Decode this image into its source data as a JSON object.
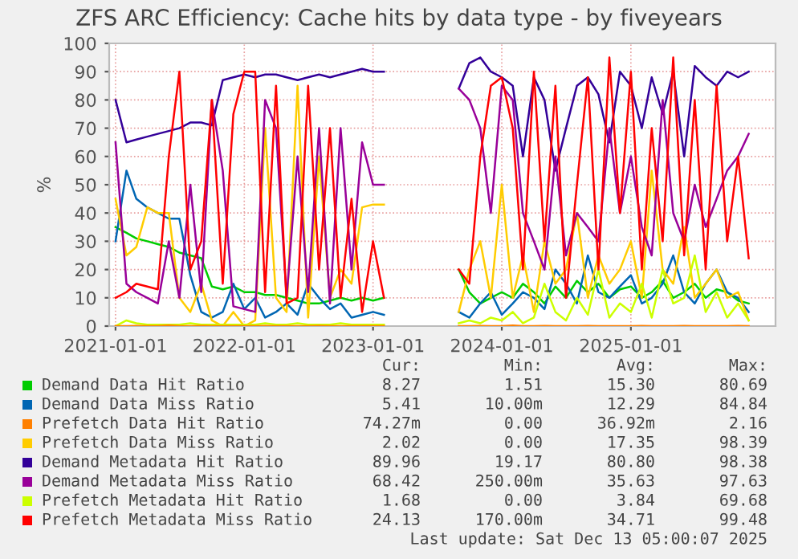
{
  "chart_data": {
    "type": "line",
    "title": "ZFS ARC Efficiency: Cache hits by data type - by fiveyears",
    "ylabel": "%",
    "x": [
      "2021-01",
      "2021-02",
      "2021-03",
      "2021-04",
      "2021-05",
      "2021-06",
      "2021-07",
      "2021-08",
      "2021-09",
      "2021-10",
      "2021-11",
      "2021-12",
      "2022-01",
      "2022-02",
      "2022-03",
      "2022-04",
      "2022-05",
      "2022-06",
      "2022-07",
      "2022-08",
      "2022-09",
      "2022-10",
      "2022-11",
      "2022-12",
      "2023-01",
      "2023-02",
      "2023-03",
      "2023-04",
      "2023-05",
      "2023-06",
      "2023-07",
      "2023-08",
      "2023-09",
      "2023-10",
      "2023-11",
      "2023-12",
      "2024-01",
      "2024-02",
      "2024-03",
      "2024-04",
      "2024-05",
      "2024-06",
      "2024-07",
      "2024-08",
      "2024-09",
      "2024-10",
      "2024-11",
      "2024-12",
      "2025-01",
      "2025-02",
      "2025-03",
      "2025-04",
      "2025-05",
      "2025-06",
      "2025-07",
      "2025-08",
      "2025-09",
      "2025-10",
      "2025-11",
      "2025-12"
    ],
    "series": [
      {
        "name": "Demand Data Hit Ratio",
        "color": "#00cc00",
        "values": [
          35,
          33,
          31,
          30,
          29,
          28,
          26,
          25,
          24,
          14,
          13,
          14,
          12,
          12,
          11,
          11,
          10,
          9,
          8,
          8,
          9,
          10,
          9,
          10,
          9,
          10,
          null,
          null,
          null,
          null,
          null,
          null,
          20,
          12,
          8,
          10,
          12,
          10,
          15,
          12,
          8,
          14,
          10,
          16,
          12,
          15,
          10,
          13,
          14,
          10,
          12,
          16,
          10,
          12,
          15,
          10,
          13,
          12,
          9,
          8
        ]
      },
      {
        "name": "Demand Data Miss Ratio",
        "color": "#0066b3",
        "values": [
          30,
          55,
          45,
          42,
          40,
          38,
          38,
          18,
          5,
          3,
          5,
          15,
          6,
          10,
          3,
          5,
          8,
          4,
          15,
          10,
          6,
          8,
          3,
          4,
          5,
          4,
          null,
          null,
          null,
          null,
          null,
          null,
          5,
          3,
          8,
          12,
          4,
          8,
          12,
          10,
          6,
          20,
          15,
          8,
          25,
          12,
          10,
          14,
          18,
          8,
          10,
          15,
          25,
          12,
          8,
          15,
          20,
          12,
          10,
          5
        ]
      },
      {
        "name": "Prefetch Data Hit Ratio",
        "color": "#ff8000",
        "values": [
          0,
          0,
          0.1,
          0,
          0,
          0.2,
          0,
          0,
          0.1,
          0,
          0,
          0,
          0,
          0,
          0.1,
          0,
          0,
          0,
          0,
          0.1,
          0,
          0,
          0,
          0,
          0,
          0,
          null,
          null,
          null,
          null,
          null,
          null,
          0,
          0,
          0.1,
          0,
          0,
          0.2,
          0,
          0,
          0.1,
          0,
          0,
          0,
          0.1,
          0,
          0,
          0,
          0,
          0.1,
          0,
          0,
          0,
          0.1,
          0,
          0,
          0,
          0,
          0.1,
          0
        ]
      },
      {
        "name": "Prefetch Data Miss Ratio",
        "color": "#ffcc00",
        "values": [
          45,
          25,
          28,
          42,
          40,
          40,
          10,
          5,
          15,
          2,
          0,
          5,
          0,
          2,
          70,
          10,
          5,
          85,
          3,
          60,
          10,
          20,
          15,
          42,
          43,
          43,
          null,
          null,
          null,
          null,
          null,
          null,
          5,
          20,
          30,
          10,
          50,
          10,
          25,
          5,
          30,
          15,
          20,
          40,
          10,
          25,
          15,
          20,
          30,
          10,
          55,
          20,
          15,
          35,
          10,
          15,
          20,
          10,
          12,
          2
        ]
      },
      {
        "name": "Demand Metadata Hit Ratio",
        "color": "#330099",
        "values": [
          80,
          65,
          66,
          67,
          68,
          69,
          70,
          72,
          72,
          71,
          87,
          88,
          89,
          88,
          89,
          89,
          88,
          87,
          88,
          89,
          88,
          89,
          90,
          91,
          90,
          90,
          null,
          null,
          null,
          null,
          null,
          null,
          84,
          93,
          95,
          90,
          88,
          85,
          60,
          88,
          80,
          55,
          70,
          85,
          88,
          82,
          65,
          90,
          85,
          70,
          88,
          75,
          90,
          60,
          92,
          88,
          85,
          90,
          88,
          90
        ]
      },
      {
        "name": "Demand Metadata Miss Ratio",
        "color": "#990099",
        "values": [
          65,
          15,
          12,
          10,
          8,
          30,
          10,
          50,
          12,
          80,
          55,
          7,
          6,
          5,
          80,
          70,
          10,
          60,
          12,
          70,
          8,
          70,
          20,
          65,
          50,
          50,
          null,
          null,
          null,
          null,
          null,
          null,
          84,
          80,
          70,
          40,
          85,
          80,
          40,
          30,
          20,
          60,
          25,
          40,
          35,
          30,
          70,
          40,
          60,
          35,
          25,
          80,
          40,
          30,
          50,
          35,
          45,
          55,
          60,
          68
        ]
      },
      {
        "name": "Prefetch Metadata Hit Ratio",
        "color": "#ccff00",
        "values": [
          0,
          2,
          1,
          0.5,
          0.5,
          0.5,
          0.5,
          1,
          0.5,
          0.5,
          0.5,
          0.5,
          0.5,
          0.5,
          1,
          0.5,
          0.5,
          1,
          0.5,
          0.5,
          0.5,
          1,
          0.5,
          0.5,
          0.5,
          0.5,
          null,
          null,
          null,
          null,
          null,
          null,
          1,
          2,
          1,
          3,
          2,
          5,
          1,
          3,
          15,
          5,
          2,
          10,
          4,
          20,
          3,
          8,
          5,
          15,
          3,
          20,
          8,
          10,
          25,
          5,
          12,
          3,
          8,
          2
        ]
      },
      {
        "name": "Prefetch Metadata Miss Ratio",
        "color": "#ff0000",
        "values": [
          10,
          12,
          15,
          14,
          13,
          60,
          90,
          20,
          30,
          80,
          15,
          75,
          90,
          90,
          12,
          85,
          8,
          10,
          85,
          20,
          70,
          10,
          45,
          5,
          30,
          10,
          null,
          null,
          null,
          null,
          null,
          null,
          20,
          15,
          60,
          85,
          88,
          70,
          20,
          90,
          30,
          85,
          10,
          50,
          88,
          20,
          95,
          40,
          90,
          20,
          70,
          30,
          95,
          25,
          80,
          20,
          85,
          30,
          60,
          24
        ]
      }
    ],
    "xlim": [
      "2020-12-14",
      "2026-02-15"
    ],
    "xticks": [
      {
        "value": "2021-01-01",
        "label": "2021-01-01"
      },
      {
        "value": "2022-01-01",
        "label": "2022-01-01"
      },
      {
        "value": "2023-01-01",
        "label": "2023-01-01"
      },
      {
        "value": "2024-01-01",
        "label": "2024-01-01"
      },
      {
        "value": "2025-01-01",
        "label": "2025-01-01"
      }
    ],
    "ylim": [
      0,
      100
    ],
    "yticks": [
      0,
      10,
      20,
      30,
      40,
      50,
      60,
      70,
      80,
      90,
      100
    ],
    "grid": true,
    "legend": "bottom",
    "marker": "none",
    "line_style": "solid",
    "annotations": [
      "Cur:",
      "Min:",
      "Avg:",
      "Max:",
      "8.27",
      "1.51",
      "15.30",
      "80.69",
      "5.41",
      "10.00m",
      "12.29",
      "84.84",
      "74.27m",
      "0.00",
      "36.92m",
      "2.16",
      "2.02",
      "0.00",
      "17.35",
      "98.39",
      "89.96",
      "19.17",
      "80.80",
      "98.38",
      "68.42",
      "250.00m",
      "35.63",
      "97.63",
      "1.68",
      "0.00",
      "3.84",
      "69.68",
      "24.13",
      "170.00m",
      "34.71",
      "99.48",
      "Last update: Sat Dec 13 05:00:07 2025"
    ]
  }
}
